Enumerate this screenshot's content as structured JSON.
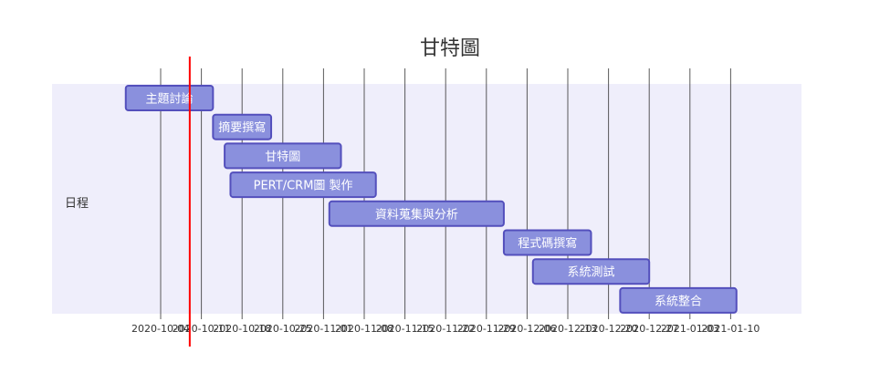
{
  "chart_data": {
    "type": "gantt",
    "title": "甘特圖",
    "section": "日程",
    "today": "2020-10-09",
    "x_ticks": [
      "2020-10-04",
      "2020-10-11",
      "2020-10-18",
      "2020-10-25",
      "2020-11-01",
      "2020-11-08",
      "2020-11-15",
      "2020-11-22",
      "2020-11-29",
      "2020-12-06",
      "2020-12-13",
      "2020-12-20",
      "2020-12-27",
      "2021-01-03",
      "2021-01-10"
    ],
    "tasks": [
      {
        "name": "主題討論",
        "start": "2020-09-28",
        "end": "2020-10-13"
      },
      {
        "name": "摘要撰寫",
        "start": "2020-10-13",
        "end": "2020-10-23"
      },
      {
        "name": "甘特圖",
        "start": "2020-10-15",
        "end": "2020-11-04"
      },
      {
        "name": "PERT/CRM圖 製作",
        "start": "2020-10-16",
        "end": "2020-11-10"
      },
      {
        "name": "資料蒐集與分析",
        "start": "2020-11-02",
        "end": "2020-12-02"
      },
      {
        "name": "程式碼撰寫",
        "start": "2020-12-02",
        "end": "2020-12-17"
      },
      {
        "name": "系統測試",
        "start": "2020-12-07",
        "end": "2020-12-27"
      },
      {
        "name": "系統整合",
        "start": "2020-12-22",
        "end": "2021-01-11"
      }
    ],
    "colors": {
      "task_fill": "#8a90dd",
      "task_stroke": "#534fbc",
      "section_bg": "#efeefb",
      "today_line": "#ff0000",
      "grid": "#333333"
    }
  }
}
